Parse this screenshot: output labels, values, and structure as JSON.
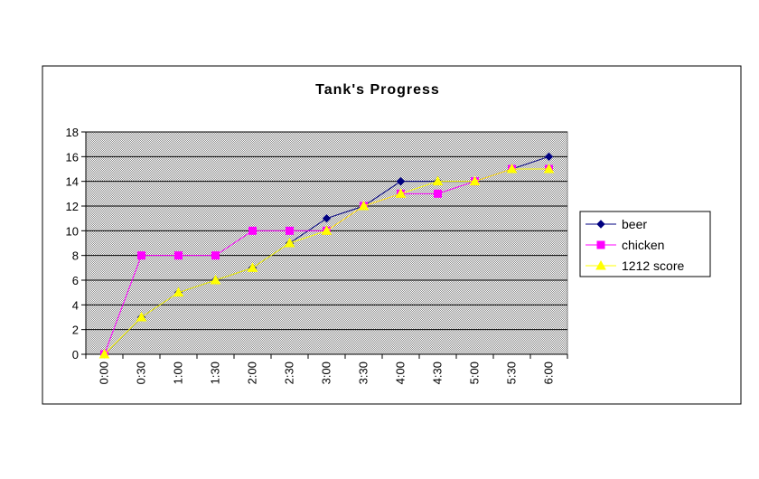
{
  "chart_data": {
    "type": "line",
    "title": "Tank's Progress",
    "xlabel": "",
    "ylabel": "",
    "categories": [
      "0:00",
      "0:30",
      "1:00",
      "1:30",
      "2:00",
      "2:30",
      "3:00",
      "3:30",
      "4:00",
      "4:30",
      "5:00",
      "5:30",
      "6:00"
    ],
    "y_ticks": [
      "0",
      "2",
      "4",
      "6",
      "8",
      "10",
      "12",
      "14",
      "16",
      "18"
    ],
    "ylim": [
      0,
      18
    ],
    "grid": true,
    "legend_position": "right",
    "series": [
      {
        "name": "beer",
        "color": "#000080",
        "marker": "diamond",
        "values": [
          0,
          3,
          5,
          6,
          7,
          9,
          11,
          12,
          14,
          14,
          14,
          15,
          16
        ]
      },
      {
        "name": "chicken",
        "color": "#ff00ff",
        "marker": "square",
        "values": [
          0,
          8,
          8,
          8,
          10,
          10,
          10,
          12,
          13,
          13,
          14,
          15,
          15
        ]
      },
      {
        "name": "1212 score",
        "color": "#ffff00",
        "marker": "triangle",
        "values": [
          0,
          3,
          5,
          6,
          7,
          9,
          10,
          12,
          13,
          14,
          14,
          15,
          15
        ]
      }
    ]
  }
}
